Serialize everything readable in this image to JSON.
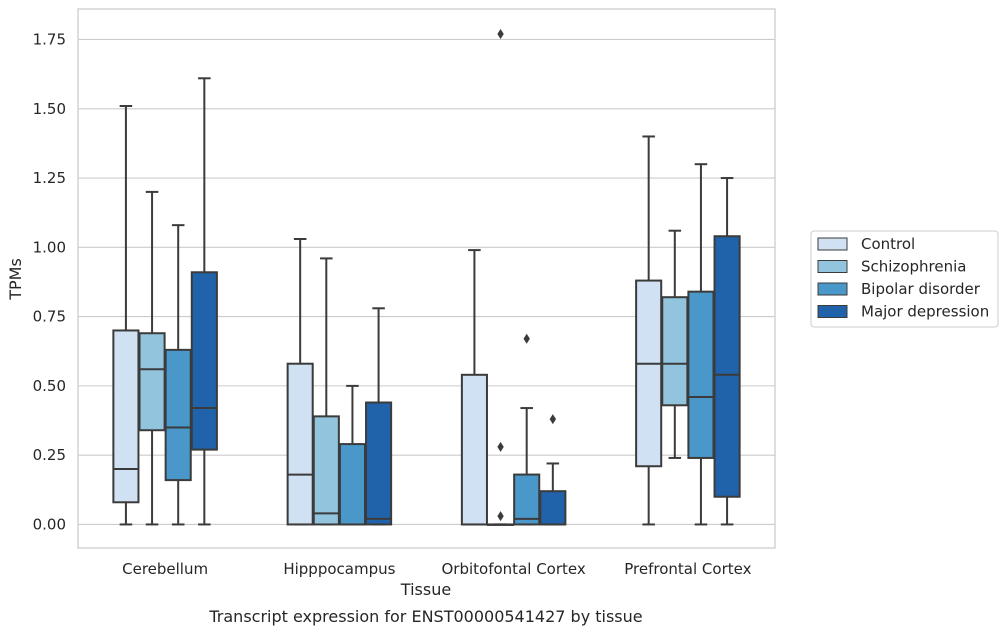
{
  "caption": "Transcript expression for ENST00000541427 by tissue",
  "colors": {
    "box_edge": "#3b3b3b",
    "grid": "#cccccc",
    "frame": "#cccccc",
    "series": [
      "#cfe1f2",
      "#93c4de",
      "#4a98c9",
      "#2163aa"
    ]
  },
  "chart_data": {
    "type": "box",
    "xlabel": "Tissue",
    "ylabel": "TPMs",
    "ylim": [
      -0.085,
      1.86
    ],
    "yticks": [
      "0.00",
      "0.25",
      "0.50",
      "0.75",
      "1.00",
      "1.25",
      "1.50",
      "1.75"
    ],
    "ytick_values": [
      0,
      0.25,
      0.5,
      0.75,
      1.0,
      1.25,
      1.5,
      1.75
    ],
    "grid": "horizontal",
    "legend_position": "right",
    "categories": [
      "Cerebellum",
      "Hipppocampus",
      "Orbitofontal Cortex",
      "Prefrontal Cortex"
    ],
    "series": [
      {
        "name": "Control",
        "boxes": [
          {
            "min": 0.0,
            "q1": 0.08,
            "median": 0.2,
            "q3": 0.7,
            "max": 1.51,
            "outliers": []
          },
          {
            "min": 0.0,
            "q1": 0.0,
            "median": 0.18,
            "q3": 0.58,
            "max": 1.03,
            "outliers": []
          },
          {
            "min": 0.0,
            "q1": 0.0,
            "median": 0.0,
            "q3": 0.54,
            "max": 0.99,
            "outliers": []
          },
          {
            "min": 0.0,
            "q1": 0.21,
            "median": 0.58,
            "q3": 0.88,
            "max": 1.4,
            "outliers": []
          }
        ]
      },
      {
        "name": "Schizophrenia",
        "boxes": [
          {
            "min": 0.0,
            "q1": 0.34,
            "median": 0.56,
            "q3": 0.69,
            "max": 1.2,
            "outliers": []
          },
          {
            "min": 0.0,
            "q1": 0.0,
            "median": 0.04,
            "q3": 0.39,
            "max": 0.96,
            "outliers": []
          },
          {
            "min": 0.0,
            "q1": 0.0,
            "median": 0.0,
            "q3": 0.0,
            "max": 0.0,
            "outliers": [
              0.28,
              0.03,
              1.77
            ]
          },
          {
            "min": 0.24,
            "q1": 0.43,
            "median": 0.58,
            "q3": 0.82,
            "max": 1.06,
            "outliers": []
          }
        ]
      },
      {
        "name": "Bipolar disorder",
        "boxes": [
          {
            "min": 0.0,
            "q1": 0.16,
            "median": 0.35,
            "q3": 0.63,
            "max": 1.08,
            "outliers": []
          },
          {
            "min": 0.0,
            "q1": 0.0,
            "median": 0.0,
            "q3": 0.29,
            "max": 0.5,
            "outliers": []
          },
          {
            "min": 0.0,
            "q1": 0.0,
            "median": 0.02,
            "q3": 0.18,
            "max": 0.42,
            "outliers": [
              0.67
            ]
          },
          {
            "min": 0.0,
            "q1": 0.24,
            "median": 0.46,
            "q3": 0.84,
            "max": 1.3,
            "outliers": []
          }
        ]
      },
      {
        "name": "Major depression",
        "boxes": [
          {
            "min": 0.0,
            "q1": 0.27,
            "median": 0.42,
            "q3": 0.91,
            "max": 1.61,
            "outliers": []
          },
          {
            "min": 0.0,
            "q1": 0.0,
            "median": 0.02,
            "q3": 0.44,
            "max": 0.78,
            "outliers": []
          },
          {
            "min": 0.0,
            "q1": 0.0,
            "median": 0.0,
            "q3": 0.12,
            "max": 0.22,
            "outliers": [
              0.38
            ]
          },
          {
            "min": 0.0,
            "q1": 0.1,
            "median": 0.54,
            "q3": 1.04,
            "max": 1.25,
            "outliers": []
          }
        ]
      }
    ]
  }
}
